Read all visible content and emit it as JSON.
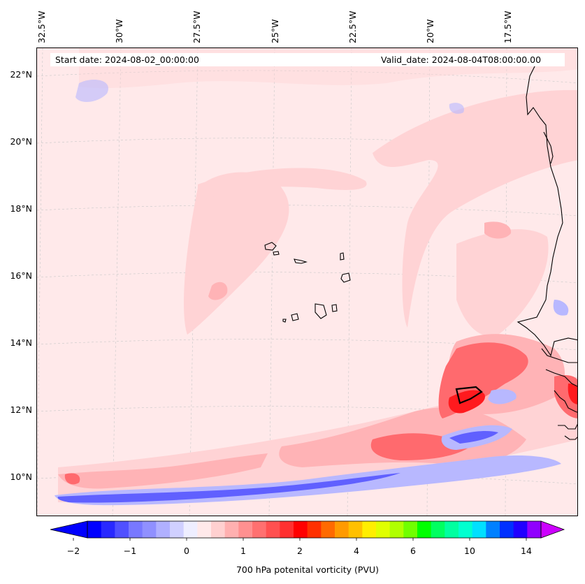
{
  "map": {
    "start_date": "Start date: 2024-08-02_00:00:00",
    "valid_date": "Valid_date: 2024-08-04T08:00:00.00",
    "lon_labels": [
      "32.5°W",
      "30°W",
      "27.5°W",
      "25°W",
      "22.5°W",
      "20°W",
      "17.5°W"
    ],
    "lat_labels": [
      "22°N",
      "20°N",
      "18°N",
      "16°N",
      "14°N",
      "12°N",
      "10°N"
    ],
    "background_color": "#ffe9ea",
    "coast_color": "#000000"
  },
  "colorbar": {
    "label": "700 hPa potenital vorticity (PVU)",
    "tick_labels": [
      "−2",
      "−1",
      "0",
      "1",
      "2",
      "4",
      "6",
      "10",
      "14"
    ],
    "colors": [
      "#0000ff",
      "#2828ff",
      "#5050ff",
      "#7878ff",
      "#9090ff",
      "#b0b0ff",
      "#d0d0ff",
      "#eeeeff",
      "#ffe9ea",
      "#ffd0d0",
      "#ffb0b0",
      "#ff9090",
      "#ff7070",
      "#ff5050",
      "#ff3030",
      "#ff0000",
      "#ff3000",
      "#ff6a00",
      "#ff9a00",
      "#ffc000",
      "#ffee00",
      "#e0ff00",
      "#b0ff00",
      "#70ff00",
      "#00ff00",
      "#00ff60",
      "#00ffa0",
      "#00ffd0",
      "#00e0ff",
      "#0080ff",
      "#0030ff",
      "#2000ff",
      "#9000ff"
    ],
    "under_color": "#0000ff",
    "over_color": "#cc00ff"
  }
}
